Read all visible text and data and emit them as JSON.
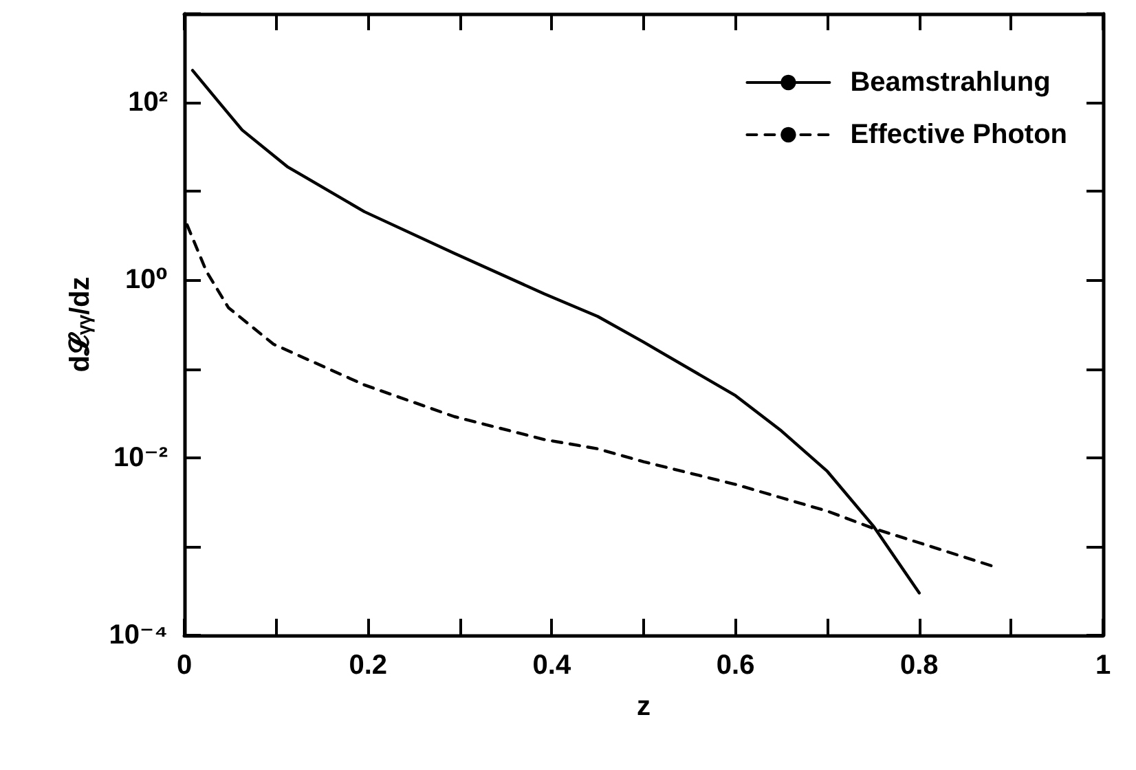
{
  "chart_data": {
    "type": "line",
    "xlabel": "z",
    "ylabel": "d𝓛ᵧᵧ/dz",
    "log": "y",
    "xlim": [
      0,
      1
    ],
    "ylim": [
      0.0001,
      1000
    ],
    "xticks": [
      0,
      {
        "value": 0.1,
        "label": null
      },
      0.2,
      {
        "value": 0.3,
        "label": null
      },
      0.4,
      {
        "value": 0.5,
        "label": null
      },
      0.6,
      {
        "value": 0.7,
        "label": null
      },
      0.8,
      {
        "value": 0.9,
        "label": null
      },
      1.0
    ],
    "yticks": [
      {
        "value": 0.0001,
        "label": "10⁻⁴"
      },
      {
        "value": 0.001,
        "label": null
      },
      {
        "value": 0.01,
        "label": "10⁻²"
      },
      {
        "value": 0.1,
        "label": null
      },
      {
        "value": 1,
        "label": "10⁰"
      },
      {
        "value": 10,
        "label": null
      },
      {
        "value": 100,
        "label": "10²"
      },
      {
        "value": 1000,
        "label": null
      }
    ],
    "grid": false,
    "legend": "top right",
    "marker": "none",
    "series": [
      {
        "name": "Beamstrahlung",
        "color": "#000000",
        "line_style": "solid",
        "x": [
          0.009,
          0.038,
          0.063,
          0.112,
          0.196,
          0.294,
          0.392,
          0.45,
          0.5,
          0.6,
          0.65,
          0.7,
          0.75,
          0.8
        ],
        "values": [
          230,
          100,
          49,
          19,
          5.9,
          2.0,
          0.7,
          0.39,
          0.2,
          0.05,
          0.02,
          0.007,
          0.0017,
          0.0003
        ]
      },
      {
        "name": "Effective Photon",
        "color": "#000000",
        "line_style": "dashed",
        "x": [
          0.003,
          0.024,
          0.048,
          0.097,
          0.196,
          0.294,
          0.392,
          0.45,
          0.5,
          0.6,
          0.7,
          0.75,
          0.8,
          0.88
        ],
        "values": [
          4.2,
          1.26,
          0.49,
          0.19,
          0.066,
          0.029,
          0.016,
          0.0126,
          0.009,
          0.005,
          0.0025,
          0.0016,
          0.0011,
          0.0006
        ]
      }
    ]
  }
}
